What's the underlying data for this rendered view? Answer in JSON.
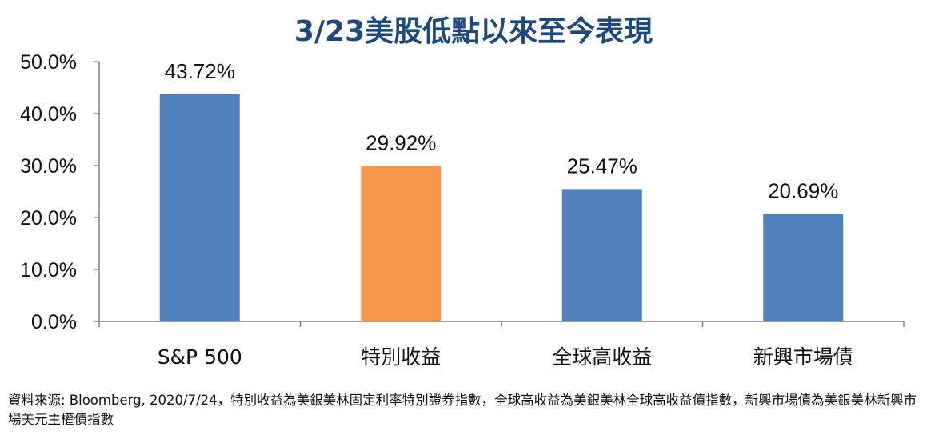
{
  "chart_data": {
    "type": "bar",
    "title": "3/23美股低點以來至今表現",
    "categories": [
      "S&P 500",
      "特別收益",
      "全球高收益",
      "新興市場債"
    ],
    "values": [
      43.72,
      29.92,
      25.47,
      20.69
    ],
    "data_labels": [
      "43.72%",
      "29.92%",
      "25.47%",
      "20.69%"
    ],
    "bar_colors": [
      "#4F81BD",
      "#F79646",
      "#4F81BD",
      "#4F81BD"
    ],
    "ylim": [
      0,
      50
    ],
    "y_ticks": [
      0,
      10,
      20,
      30,
      40,
      50
    ],
    "y_tick_labels": [
      "0.0%",
      "10.0%",
      "20.0%",
      "30.0%",
      "40.0%",
      "50.0%"
    ],
    "xlabel": "",
    "ylabel": "",
    "grid": false,
    "title_color": "#1F497D"
  },
  "source_note": "資料來源: Bloomberg, 2020/7/24，特別收益為美銀美林固定利率特別證券指數，全球高收益為美銀美林全球高收益債指數，新興市場債為美銀美林新興市場美元主權債指數"
}
